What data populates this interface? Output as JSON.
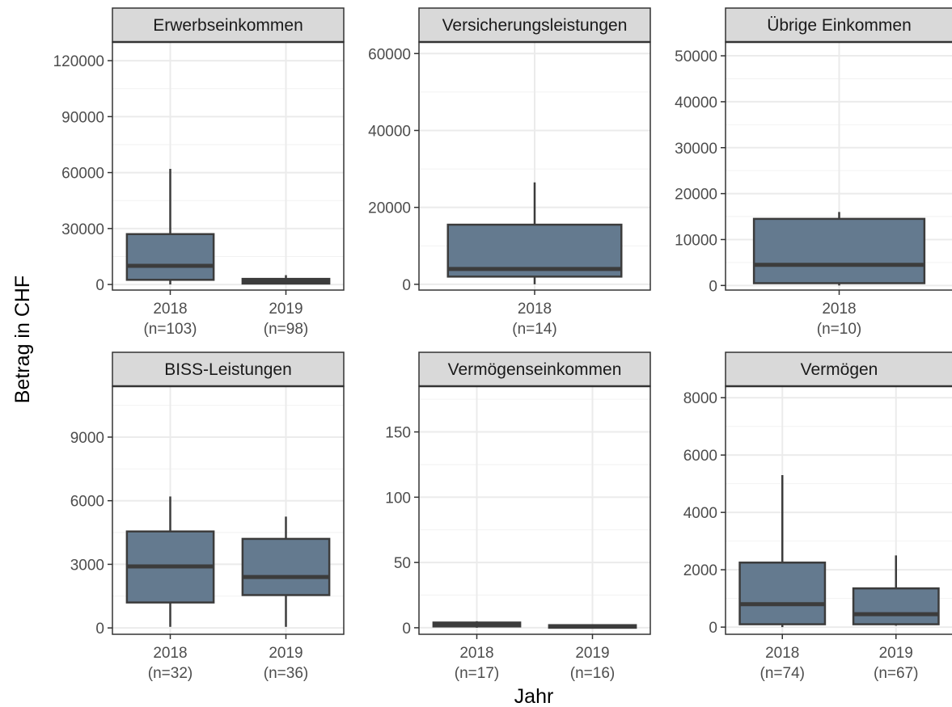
{
  "chart_data": {
    "type": "boxplot",
    "xlabel": "Jahr",
    "ylabel": "Betrag in CHF",
    "box_color": "#647a8f",
    "box_edge_color": "#3c3c3c",
    "strip_color": "#d9d9d9",
    "grid": true,
    "panels": [
      {
        "title": "Erwerbseinkommen",
        "ylim": [
          -3000,
          130000
        ],
        "yticks": [
          0,
          30000,
          60000,
          90000,
          120000
        ],
        "tick_labels": [
          "0",
          "30000",
          "60000",
          "90000",
          "120000"
        ],
        "categories": [
          "2018",
          "2019"
        ],
        "n_labels": [
          "(n=103)",
          "(n=98)"
        ],
        "boxes": [
          {
            "min": 0,
            "q1": 2500,
            "median": 10000,
            "q3": 27000,
            "max": 62000
          },
          {
            "min": 0,
            "q1": 500,
            "median": 1500,
            "q3": 3000,
            "max": 5000
          }
        ]
      },
      {
        "title": "Versicherungsleistungen",
        "ylim": [
          -1500,
          63000
        ],
        "yticks": [
          0,
          20000,
          40000,
          60000
        ],
        "tick_labels": [
          "0",
          "20000",
          "40000",
          "60000"
        ],
        "categories": [
          "2018"
        ],
        "n_labels": [
          "(n=14)"
        ],
        "boxes": [
          {
            "min": 0,
            "q1": 2000,
            "median": 4000,
            "q3": 15500,
            "max": 26500
          }
        ]
      },
      {
        "title": "Übrige Einkommen",
        "ylim": [
          -1000,
          53000
        ],
        "yticks": [
          0,
          10000,
          20000,
          30000,
          40000,
          50000
        ],
        "tick_labels": [
          "0",
          "10000",
          "20000",
          "30000",
          "40000",
          "50000"
        ],
        "categories": [
          "2018"
        ],
        "n_labels": [
          "(n=10)"
        ],
        "boxes": [
          {
            "min": 0,
            "q1": 500,
            "median": 4500,
            "q3": 14500,
            "max": 16000
          }
        ]
      },
      {
        "title": "BISS-Leistungen",
        "ylim": [
          -300,
          11400
        ],
        "yticks": [
          0,
          3000,
          6000,
          9000
        ],
        "tick_labels": [
          "0",
          "3000",
          "6000",
          "9000"
        ],
        "categories": [
          "2018",
          "2019"
        ],
        "n_labels": [
          "(n=32)",
          "(n=36)"
        ],
        "boxes": [
          {
            "min": 50,
            "q1": 1200,
            "median": 2900,
            "q3": 4550,
            "max": 6200
          },
          {
            "min": 50,
            "q1": 1550,
            "median": 2400,
            "q3": 4200,
            "max": 5250
          }
        ]
      },
      {
        "title": "Vermögenseinkommen",
        "ylim": [
          -5,
          185
        ],
        "yticks": [
          0,
          50,
          100,
          150
        ],
        "tick_labels": [
          "0",
          "50",
          "100",
          "150"
        ],
        "categories": [
          "2018",
          "2019"
        ],
        "n_labels": [
          "(n=17)",
          "(n=16)"
        ],
        "boxes": [
          {
            "min": 0,
            "q1": 1,
            "median": 2,
            "q3": 4,
            "max": 5
          },
          {
            "min": 0,
            "q1": 0,
            "median": 1,
            "q3": 2,
            "max": 2
          }
        ]
      },
      {
        "title": "Vermögen",
        "ylim": [
          -250,
          8400
        ],
        "yticks": [
          0,
          2000,
          4000,
          6000,
          8000
        ],
        "tick_labels": [
          "0",
          "2000",
          "4000",
          "6000",
          "8000"
        ],
        "categories": [
          "2018",
          "2019"
        ],
        "n_labels": [
          "(n=74)",
          "(n=67)"
        ],
        "boxes": [
          {
            "min": 0,
            "q1": 100,
            "median": 800,
            "q3": 2250,
            "max": 5300
          },
          {
            "min": 50,
            "q1": 100,
            "median": 450,
            "q3": 1350,
            "max": 2500
          }
        ]
      }
    ]
  }
}
